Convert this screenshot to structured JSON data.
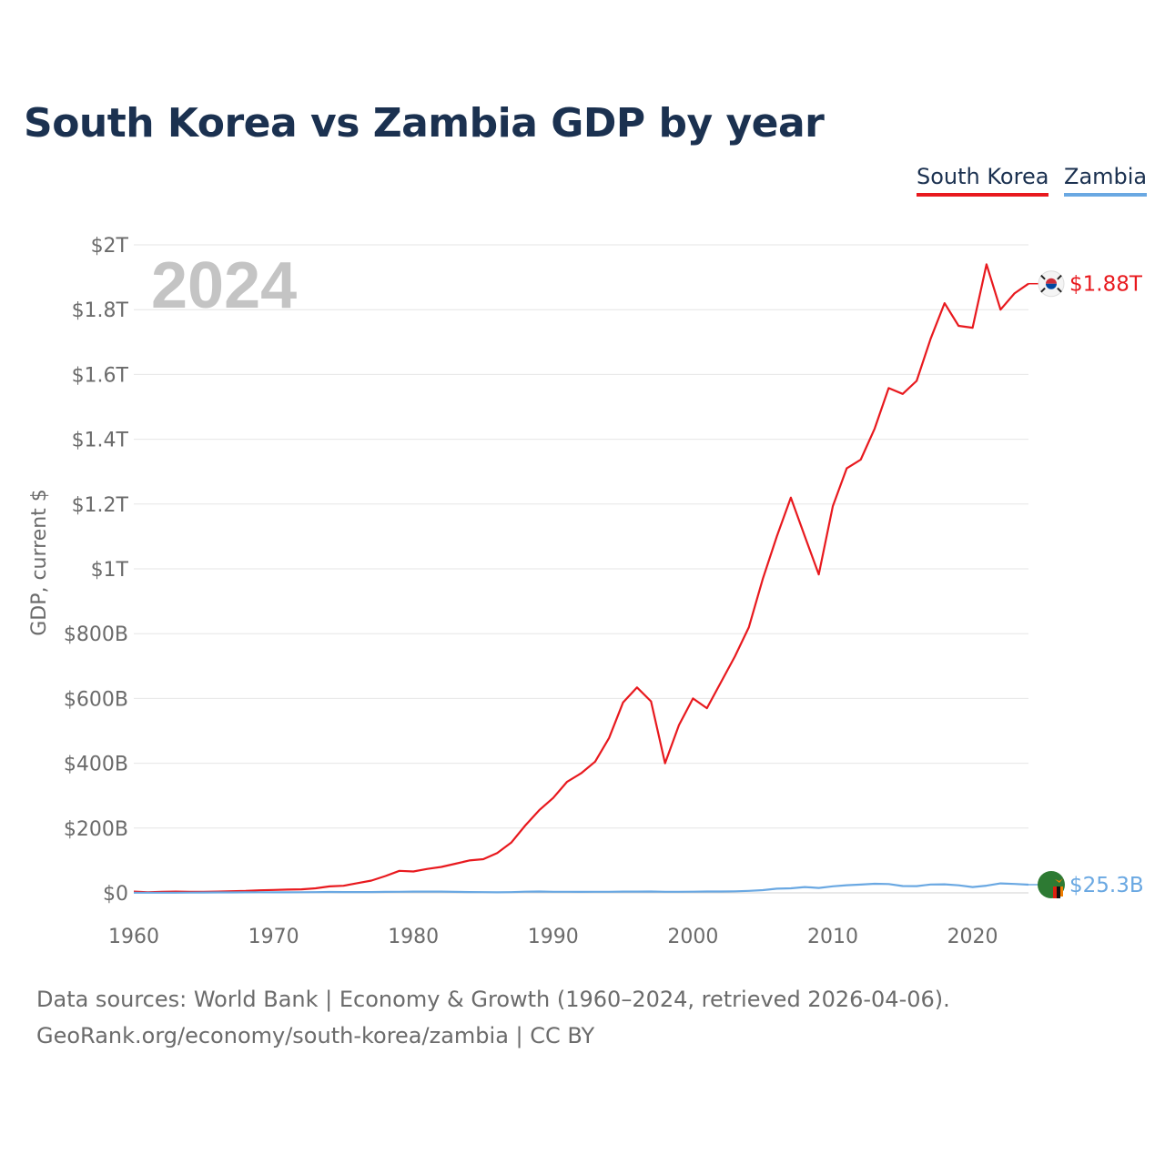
{
  "chart_data": {
    "type": "line",
    "title": "South Korea vs Zambia GDP by year",
    "ylabel": "GDP, current $",
    "xlabel": "",
    "year_label": "2024",
    "xlim": [
      1960,
      2024
    ],
    "ylim": [
      0,
      2000
    ],
    "unit": "billions USD",
    "yticks": [
      {
        "value": 0,
        "label": "$0"
      },
      {
        "value": 200,
        "label": "$200B"
      },
      {
        "value": 400,
        "label": "$400B"
      },
      {
        "value": 600,
        "label": "$600B"
      },
      {
        "value": 800,
        "label": "$800B"
      },
      {
        "value": 1000,
        "label": "$1T"
      },
      {
        "value": 1200,
        "label": "$1.2T"
      },
      {
        "value": 1400,
        "label": "$1.4T"
      },
      {
        "value": 1600,
        "label": "$1.6T"
      },
      {
        "value": 1800,
        "label": "$1.8T"
      },
      {
        "value": 2000,
        "label": "$2T"
      }
    ],
    "xticks": [
      {
        "value": 1960,
        "label": "1960"
      },
      {
        "value": 1970,
        "label": "1970"
      },
      {
        "value": 1980,
        "label": "1980"
      },
      {
        "value": 1990,
        "label": "1990"
      },
      {
        "value": 2000,
        "label": "2000"
      },
      {
        "value": 2010,
        "label": "2010"
      },
      {
        "value": 2020,
        "label": "2020"
      }
    ],
    "series": [
      {
        "name": "South Korea",
        "color": "#e8191e",
        "end_label": "$1.88T",
        "flag_icon": "south-korea-flag-icon",
        "x": [
          1960,
          1961,
          1962,
          1963,
          1964,
          1965,
          1966,
          1967,
          1968,
          1969,
          1970,
          1971,
          1972,
          1973,
          1974,
          1975,
          1976,
          1977,
          1978,
          1979,
          1980,
          1981,
          1982,
          1983,
          1984,
          1985,
          1986,
          1987,
          1988,
          1989,
          1990,
          1991,
          1992,
          1993,
          1994,
          1995,
          1996,
          1997,
          1998,
          1999,
          2000,
          2001,
          2002,
          2003,
          2004,
          2005,
          2006,
          2007,
          2008,
          2009,
          2010,
          2011,
          2012,
          2013,
          2014,
          2015,
          2016,
          2017,
          2018,
          2019,
          2020,
          2021,
          2022,
          2023,
          2024
        ],
        "values": [
          4,
          2,
          3,
          4,
          3,
          3,
          4,
          5,
          6,
          8,
          9,
          10,
          11,
          14,
          20,
          22,
          30,
          38,
          52,
          68,
          66,
          74,
          80,
          90,
          100,
          104,
          123,
          155,
          208,
          255,
          293,
          343,
          369,
          405,
          478,
          588,
          634,
          591,
          400,
          518,
          600,
          570,
          650,
          730,
          820,
          970,
          1100,
          1220,
          1100,
          983,
          1193,
          1310,
          1337,
          1433,
          1558,
          1540,
          1580,
          1710,
          1820,
          1750,
          1744,
          1940,
          1800,
          1850,
          1880
        ]
      },
      {
        "name": "Zambia",
        "color": "#6aa8e2",
        "end_label": "$25.3B",
        "flag_icon": "zambia-flag-icon",
        "x": [
          1960,
          1961,
          1962,
          1963,
          1964,
          1965,
          1966,
          1967,
          1968,
          1969,
          1970,
          1971,
          1972,
          1973,
          1974,
          1975,
          1976,
          1977,
          1978,
          1979,
          1980,
          1981,
          1982,
          1983,
          1984,
          1985,
          1986,
          1987,
          1988,
          1989,
          1990,
          1991,
          1992,
          1993,
          1994,
          1995,
          1996,
          1997,
          1998,
          1999,
          2000,
          2001,
          2002,
          2003,
          2004,
          2005,
          2006,
          2007,
          2008,
          2009,
          2010,
          2011,
          2012,
          2013,
          2014,
          2015,
          2016,
          2017,
          2018,
          2019,
          2020,
          2021,
          2022,
          2023,
          2024
        ],
        "values": [
          0.7,
          0.7,
          0.7,
          0.7,
          0.9,
          1.1,
          1.3,
          1.5,
          1.6,
          1.9,
          1.8,
          1.7,
          1.9,
          2.2,
          2.7,
          2.4,
          2.6,
          2.6,
          3.0,
          3.4,
          3.9,
          4.0,
          3.9,
          3.2,
          2.6,
          2.2,
          1.7,
          2.3,
          3.6,
          4.2,
          3.3,
          3.3,
          3.2,
          3.3,
          3.4,
          3.8,
          3.9,
          4.3,
          3.5,
          3.4,
          3.6,
          4.1,
          4.2,
          4.9,
          6.2,
          8.3,
          12.8,
          14.1,
          17.9,
          15.3,
          20.3,
          23.5,
          25.5,
          28.0,
          27.2,
          21.2,
          20.9,
          25.9,
          26.3,
          23.3,
          18.1,
          22.1,
          29.2,
          27.6,
          25.3
        ]
      }
    ]
  },
  "legend": {
    "south_korea": "South Korea",
    "zambia": "Zambia"
  },
  "footer": {
    "source": "Data sources: World Bank | Economy & Growth (1960–2024, retrieved 2026-04-06).",
    "credit": "GeoRank.org/economy/south-korea/zambia | CC BY"
  }
}
